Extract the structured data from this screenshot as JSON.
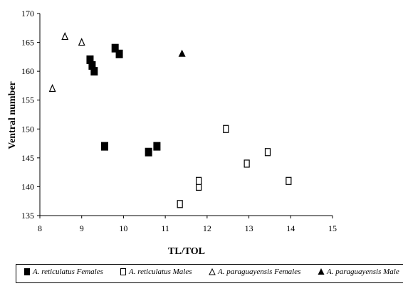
{
  "chart_data": {
    "type": "scatter",
    "xlabel": "TL/TOL",
    "ylabel": "Ventral number",
    "xlim": [
      8,
      15
    ],
    "ylim": [
      135,
      170
    ],
    "xticks": [
      8,
      9,
      10,
      11,
      12,
      13,
      14,
      15
    ],
    "yticks": [
      135,
      140,
      145,
      150,
      155,
      160,
      165,
      170
    ],
    "grid": false,
    "legend_position": "bottom",
    "series": [
      {
        "name": "A. reticulatus Females",
        "marker": "filled-square",
        "color": "#000000",
        "points": [
          {
            "x": 9.2,
            "y": 162
          },
          {
            "x": 9.25,
            "y": 161
          },
          {
            "x": 9.3,
            "y": 160
          },
          {
            "x": 9.8,
            "y": 164
          },
          {
            "x": 9.9,
            "y": 163
          },
          {
            "x": 9.55,
            "y": 147
          },
          {
            "x": 10.6,
            "y": 146
          },
          {
            "x": 10.8,
            "y": 147
          }
        ]
      },
      {
        "name": "A. reticulatus Males",
        "marker": "open-square",
        "color": "#000000",
        "points": [
          {
            "x": 11.35,
            "y": 137
          },
          {
            "x": 11.8,
            "y": 140
          },
          {
            "x": 11.8,
            "y": 141
          },
          {
            "x": 12.45,
            "y": 150
          },
          {
            "x": 12.95,
            "y": 144
          },
          {
            "x": 13.45,
            "y": 146
          },
          {
            "x": 13.95,
            "y": 141
          }
        ]
      },
      {
        "name": "A. paraguayensis Females",
        "marker": "open-triangle",
        "color": "#000000",
        "points": [
          {
            "x": 8.3,
            "y": 157
          },
          {
            "x": 8.6,
            "y": 166
          },
          {
            "x": 9.0,
            "y": 165
          }
        ]
      },
      {
        "name": "A. paraguayensis Male",
        "marker": "filled-triangle",
        "color": "#000000",
        "points": [
          {
            "x": 11.4,
            "y": 163
          }
        ]
      }
    ]
  }
}
